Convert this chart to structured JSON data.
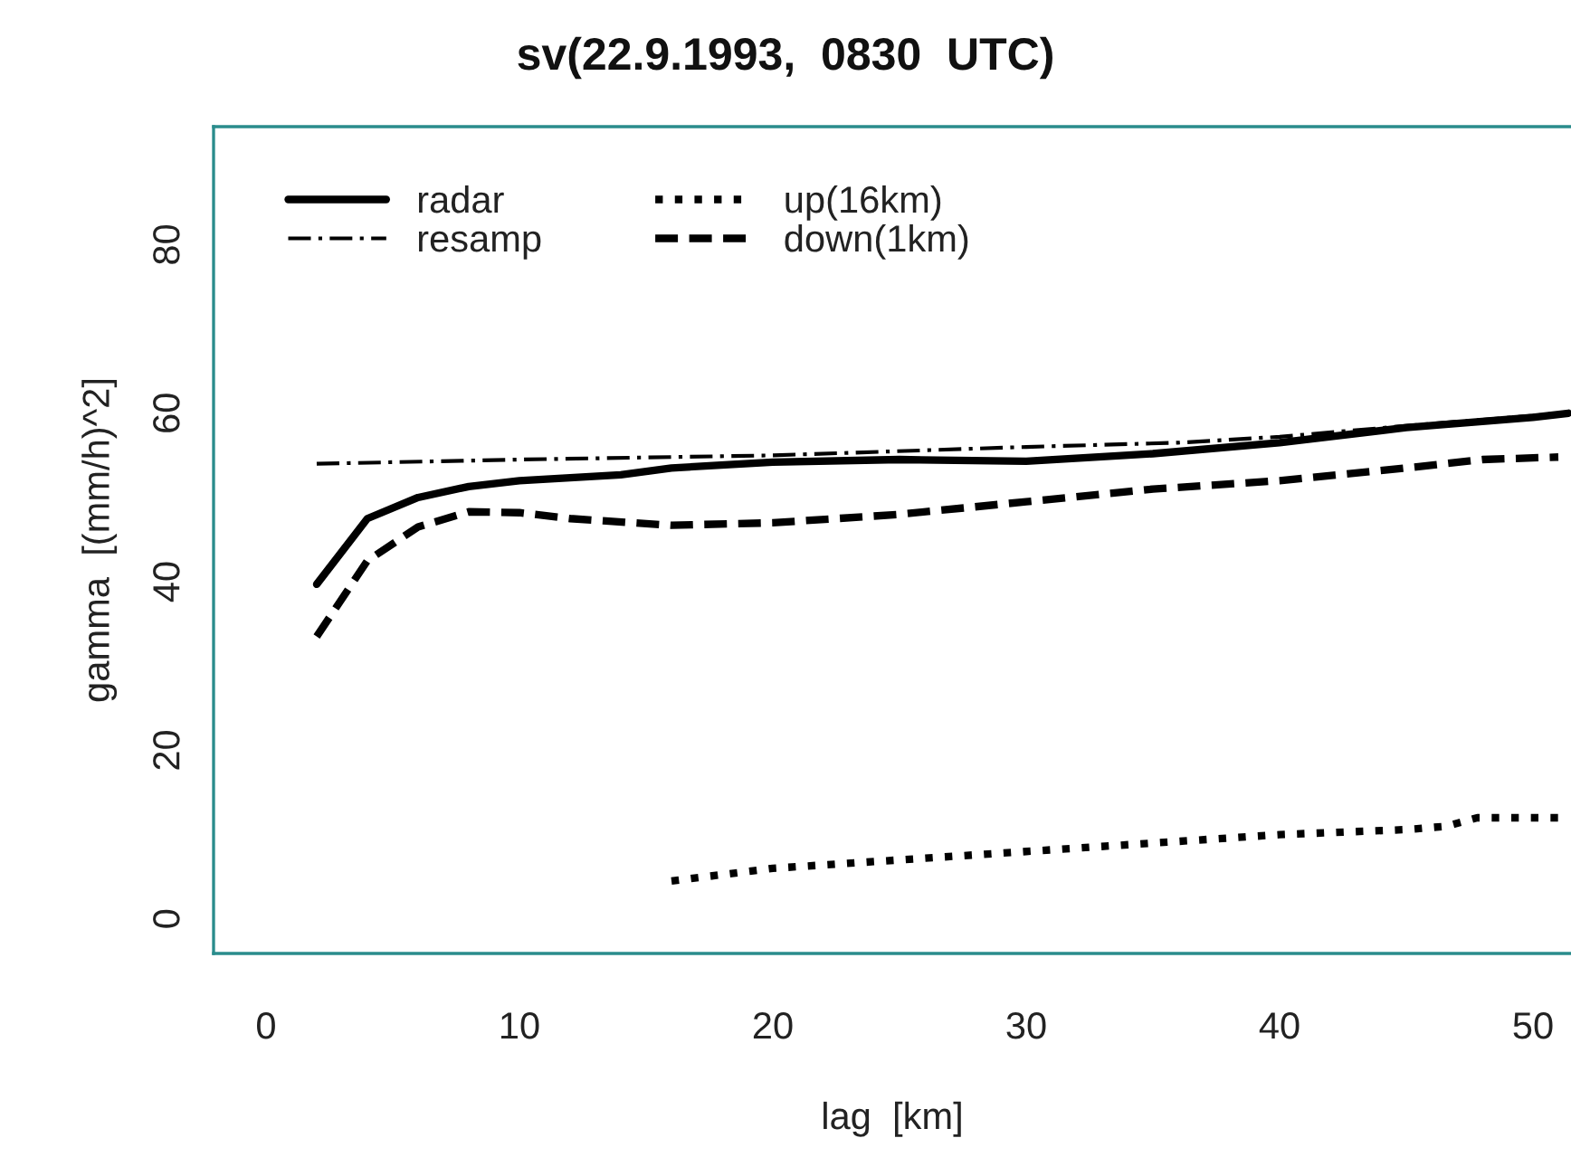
{
  "chart_data": {
    "type": "line",
    "title": "sv(22.9.1993,  0830  UTC)",
    "xlabel": "lag  [km]",
    "ylabel": "gamma  [(mm/h)^2]",
    "xlim": [
      -2.07,
      51.5
    ],
    "ylim": [
      -4.1,
      94
    ],
    "xticks": [
      0,
      10,
      20,
      30,
      40,
      50
    ],
    "yticks": [
      0,
      20,
      40,
      60,
      80
    ],
    "legend": "top left",
    "grid": false,
    "marker": "none",
    "series": [
      {
        "name": "radar",
        "color": "#000000",
        "line_style": "solid",
        "x": [
          2,
          4,
          6,
          8,
          10,
          14,
          16,
          20,
          25,
          30,
          35,
          40,
          45,
          50,
          51.4
        ],
        "values": [
          39.7,
          47.5,
          50,
          51.3,
          52,
          52.7,
          53.5,
          54.2,
          54.5,
          54.3,
          55.2,
          56.5,
          58.3,
          59.5,
          60
        ]
      },
      {
        "name": "resamp",
        "color": "#000000",
        "line_style": "dashdot",
        "x": [
          2,
          10,
          20,
          30,
          36,
          40,
          45,
          50,
          51
        ],
        "values": [
          54,
          54.5,
          55,
          56,
          56.5,
          57.2,
          58.5,
          59.7,
          60
        ]
      },
      {
        "name": "up(16km)",
        "color": "#000000",
        "line_style": "dotted",
        "x": [
          16,
          20,
          30,
          40,
          45,
          46.6,
          47.8,
          51
        ],
        "values": [
          4.5,
          6,
          8,
          10,
          10.6,
          11,
          12,
          12
        ]
      },
      {
        "name": "down(1km)",
        "color": "#000000",
        "line_style": "dashed",
        "x": [
          2,
          4,
          6,
          8,
          10,
          12,
          16,
          20,
          25,
          30,
          35,
          40,
          45,
          48,
          51
        ],
        "values": [
          33.5,
          42.5,
          46.5,
          48.3,
          48.2,
          47.5,
          46.7,
          47,
          48,
          49.5,
          51,
          52,
          53.5,
          54.5,
          54.8
        ]
      }
    ]
  }
}
